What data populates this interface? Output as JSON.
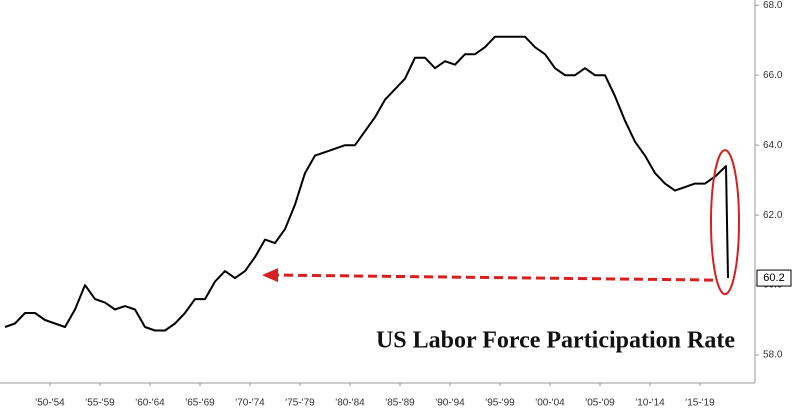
{
  "chart_data": {
    "type": "line",
    "title": "US Labor Force Participation Rate",
    "x": [
      1948,
      1949,
      1950,
      1951,
      1952,
      1953,
      1954,
      1955,
      1956,
      1957,
      1958,
      1959,
      1960,
      1961,
      1962,
      1963,
      1964,
      1965,
      1966,
      1967,
      1968,
      1969,
      1970,
      1971,
      1972,
      1973,
      1974,
      1975,
      1976,
      1977,
      1978,
      1979,
      1980,
      1981,
      1982,
      1983,
      1984,
      1985,
      1986,
      1987,
      1988,
      1989,
      1990,
      1991,
      1992,
      1993,
      1994,
      1995,
      1996,
      1997,
      1998,
      1999,
      2000,
      2001,
      2002,
      2003,
      2004,
      2005,
      2006,
      2007,
      2008,
      2009,
      2010,
      2011,
      2012,
      2013,
      2014,
      2015,
      2016,
      2017,
      2018,
      2019,
      2020.1,
      2020.3
    ],
    "series": [
      {
        "name": "US Labor Force Participation Rate",
        "color": "#000000",
        "values": [
          58.8,
          58.9,
          59.2,
          59.2,
          59.0,
          58.9,
          58.8,
          59.3,
          60.0,
          59.6,
          59.5,
          59.3,
          59.4,
          59.3,
          58.8,
          58.7,
          58.7,
          58.9,
          59.2,
          59.6,
          59.6,
          60.1,
          60.4,
          60.2,
          60.4,
          60.8,
          61.3,
          61.2,
          61.6,
          62.3,
          63.2,
          63.7,
          63.8,
          63.9,
          64.0,
          64.0,
          64.4,
          64.8,
          65.3,
          65.6,
          65.9,
          66.5,
          66.5,
          66.2,
          66.4,
          66.3,
          66.6,
          66.6,
          66.8,
          67.1,
          67.1,
          67.1,
          67.1,
          66.8,
          66.6,
          66.2,
          66.0,
          66.0,
          66.2,
          66.0,
          66.0,
          65.4,
          64.7,
          64.1,
          63.7,
          63.2,
          62.9,
          62.7,
          62.8,
          62.9,
          62.9,
          63.1,
          63.4,
          60.2
        ]
      }
    ],
    "xlim": [
      1947.5,
      2023
    ],
    "xticks": [
      {
        "value": 1952.5,
        "label": "'50-'54"
      },
      {
        "value": 1957.5,
        "label": "'55-'59"
      },
      {
        "value": 1962.5,
        "label": "'60-'64"
      },
      {
        "value": 1967.5,
        "label": "'65-'69"
      },
      {
        "value": 1972.5,
        "label": "'70-'74"
      },
      {
        "value": 1977.5,
        "label": "'75-'79"
      },
      {
        "value": 1982.5,
        "label": "'80-'84"
      },
      {
        "value": 1987.5,
        "label": "'85-'89"
      },
      {
        "value": 1992.5,
        "label": "'90-'94"
      },
      {
        "value": 1997.5,
        "label": "'95-'99"
      },
      {
        "value": 2002.5,
        "label": "'00-'04"
      },
      {
        "value": 2007.5,
        "label": "'05-'09"
      },
      {
        "value": 2012.5,
        "label": "'10-'14"
      },
      {
        "value": 2017.5,
        "label": "'15-'19"
      }
    ],
    "ylim": [
      57.2,
      68.15
    ],
    "yticks": [
      {
        "value": 58,
        "label": "58.0"
      },
      {
        "value": 60,
        "label": "60.0"
      },
      {
        "value": 62,
        "label": "62.0"
      },
      {
        "value": 64,
        "label": "64.0"
      },
      {
        "value": 66,
        "label": "66.0"
      },
      {
        "value": 68,
        "label": "68.0"
      }
    ],
    "grid": false
  }
}
